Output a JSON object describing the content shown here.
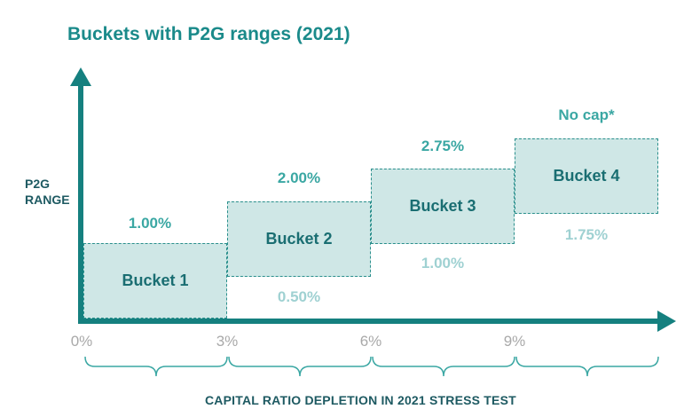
{
  "title": "Buckets with P2G ranges (2021)",
  "y_axis": {
    "line1": "P2G",
    "line2": "RANGE"
  },
  "x_axis": {
    "label": "CAPITAL RATIO DEPLETION IN 2021 STRESS TEST",
    "ticks": [
      "0%",
      "3%",
      "6%",
      "9%"
    ]
  },
  "buckets": [
    {
      "label": "Bucket 1",
      "upper": "1.00%",
      "lower": ""
    },
    {
      "label": "Bucket 2",
      "upper": "2.00%",
      "lower": "0.50%"
    },
    {
      "label": "Bucket 3",
      "upper": "2.75%",
      "lower": "1.00%"
    },
    {
      "label": "Bucket 4",
      "upper": "No cap*",
      "lower": "1.75%"
    }
  ],
  "colors": {
    "accent": "#1a8a8a",
    "axis": "#15807f",
    "box_fill": "#cfe7e6",
    "upper_text": "#3aa7a3",
    "lower_text": "#9fd1d2",
    "tick_text": "#a9a9a9"
  }
}
